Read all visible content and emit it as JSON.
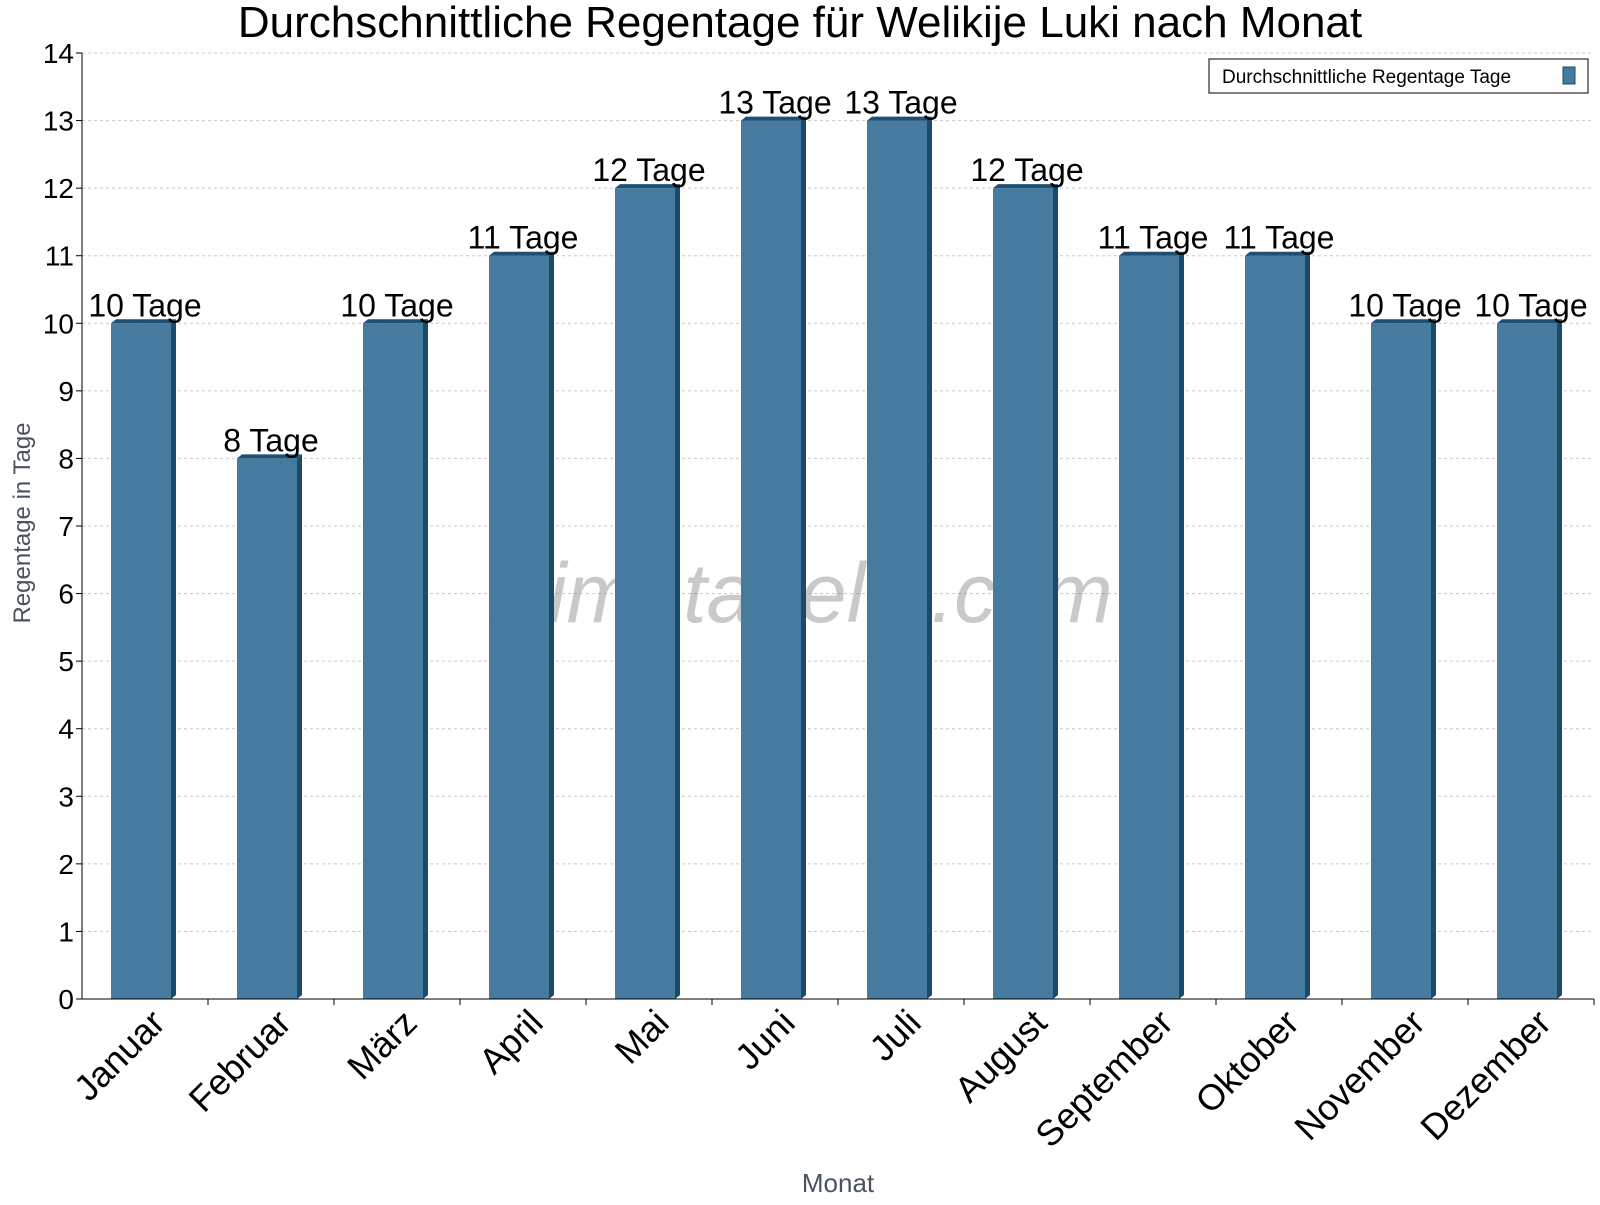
{
  "chart_data": {
    "type": "bar",
    "title": "Durchschnittliche Regentage für Welikije Luki nach Monat",
    "xlabel": "Monat",
    "ylabel": "Regentage in Tage",
    "categories": [
      "Januar",
      "Februar",
      "März",
      "April",
      "Mai",
      "Juni",
      "Juli",
      "August",
      "September",
      "Oktober",
      "November",
      "Dezember"
    ],
    "series": [
      {
        "name": "Durchschnittliche Regentage Tage",
        "values": [
          10,
          8,
          10,
          11,
          12,
          13,
          13,
          12,
          11,
          11,
          10,
          10
        ],
        "value_labels": [
          "10 Tage",
          "8 Tage",
          "10 Tage",
          "11 Tage",
          "12 Tage",
          "13 Tage",
          "13 Tage",
          "12 Tage",
          "11 Tage",
          "11 Tage",
          "10 Tage",
          "10 Tage"
        ]
      }
    ],
    "ylim": [
      0,
      14
    ],
    "yticks": [
      0,
      1,
      2,
      3,
      4,
      5,
      6,
      7,
      8,
      9,
      10,
      11,
      12,
      13,
      14
    ],
    "grid": true,
    "legend_position": "top-right",
    "colors": {
      "bar": "#467b9f",
      "bar_side": "#1c4a6b",
      "bar_top": "#1f4f73",
      "grid": "#c8c8c8",
      "axis": "#000000"
    },
    "watermark": "klimatabelle.com"
  }
}
